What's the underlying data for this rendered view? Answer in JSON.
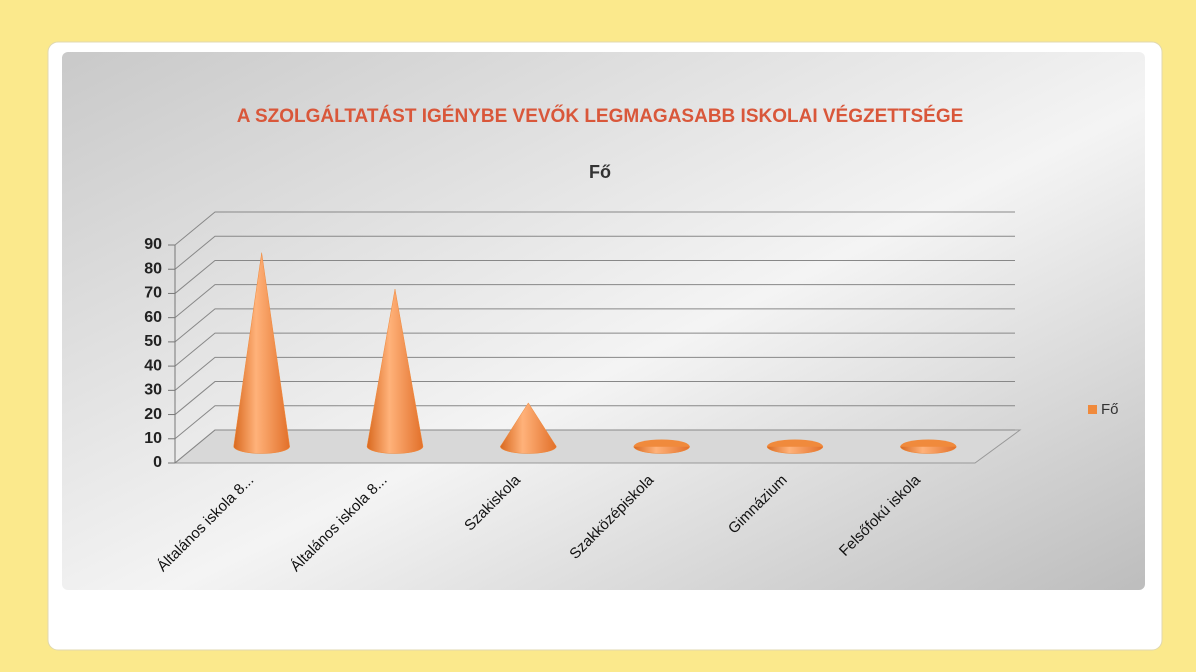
{
  "chart_data": {
    "type": "cone3d",
    "title": "A SZOLGÁLTATÁST IGÉNYBE VEVŐK LEGMAGASABB ISKOLAI VÉGZETTSÉGE",
    "subtitle": "Fő",
    "categories": [
      "Általános iskola 8...",
      "Általános iskola 8...",
      "Szakiskola",
      "Szakközépiskola",
      "Gimnázium",
      "Felsőfokú iskola"
    ],
    "series": [
      {
        "name": "Fő",
        "color": "#f08a3c",
        "values": [
          80,
          65,
          18,
          0,
          0,
          0
        ]
      }
    ],
    "ylim": [
      0,
      90
    ],
    "yticks": [
      0,
      10,
      20,
      30,
      40,
      50,
      60,
      70,
      80,
      90
    ],
    "grid": true,
    "legend": "right"
  }
}
